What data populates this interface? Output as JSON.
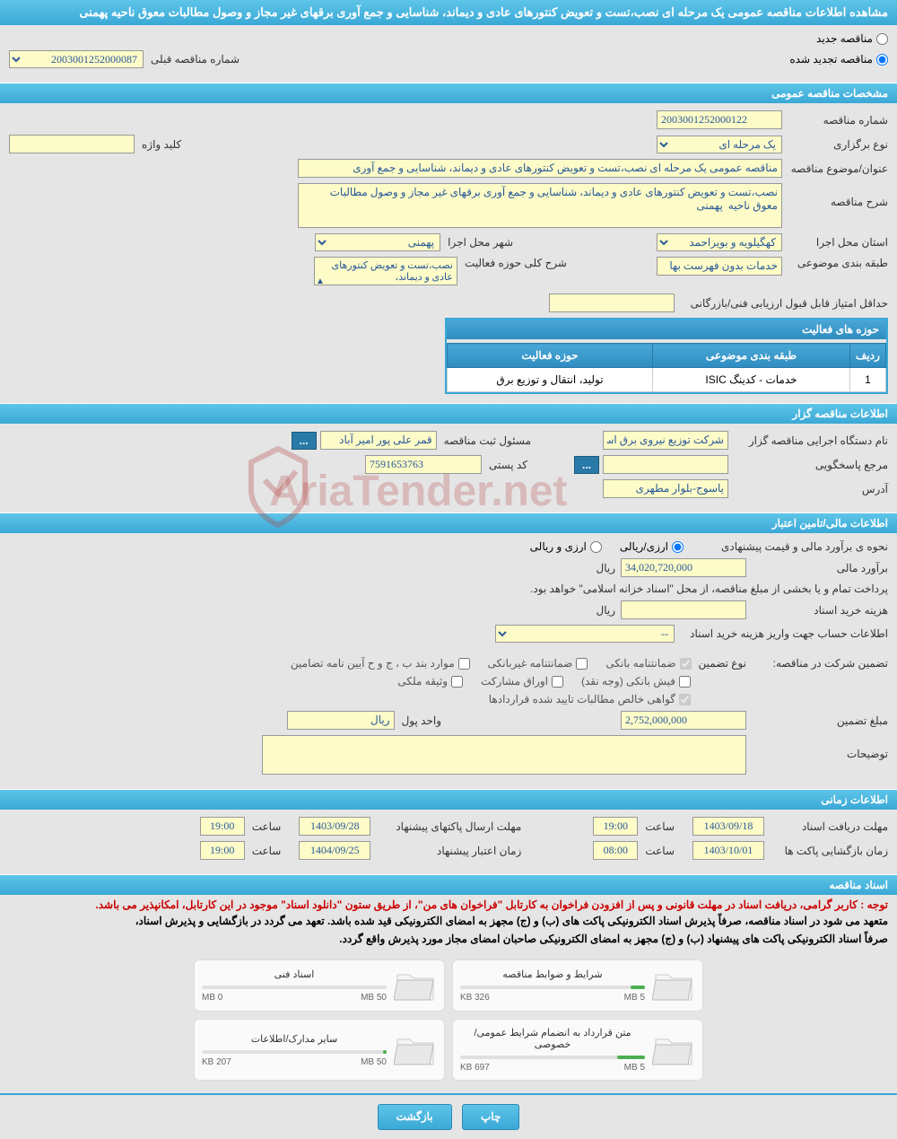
{
  "page_title": "مشاهده اطلاعات مناقصه عمومی یک مرحله ای نصب،تست و تعویض کنتورهای عادی و دیماند، شناسایی و جمع آوری برقهای غیر مجاز و وصول مطالبات معوق ناحیه پهمنی",
  "tender_type": {
    "new_label": "مناقصه جدید",
    "renewed_label": "مناقصه تجدید شده",
    "prev_number_label": "شماره مناقصه قبلی",
    "prev_number": "2003001252000087"
  },
  "sections": {
    "general": "مشخصات مناقصه عمومی",
    "organizer": "اطلاعات مناقصه گزار",
    "financial": "اطلاعات مالی/تامین اعتبار",
    "timing": "اطلاعات زمانی",
    "documents": "اسناد مناقصه"
  },
  "general": {
    "tender_number_label": "شماره مناقصه",
    "tender_number": "2003001252000122",
    "holding_type_label": "نوع برگزاری",
    "holding_type": "یک مرحله ای",
    "keyword_label": "کلید واژه",
    "keyword": "",
    "title_label": "عنوان/موضوع مناقصه",
    "title": "مناقصه عمومی یک مرحله ای نصب،تست و تعویض کنتورهای عادی و دیماند، شناسایی و جمع آوری",
    "desc_label": "شرح مناقصه",
    "desc": "نصب،تست و تعویض کنتورهای عادی و دیماند، شناسایی و جمع آوری برقهای غیر مجاز و وصول مطالبات معوق ناحیه  پهمنی",
    "province_label": "استان محل اجرا",
    "province": "کهگیلویه و بویراحمد",
    "city_label": "شهر محل اجرا",
    "city": "پهمنی",
    "category_label": "طبقه بندی موضوعی",
    "category": "خدمات بدون فهرست بها",
    "activity_desc_label": "شرح کلی حوزه فعالیت",
    "activity_desc": "نصب،تست و تعویض کنتورهای عادی و دیماند،",
    "min_score_label": "حداقل امتیاز قابل قبول ارزیابی فنی/بازرگانی",
    "min_score": "",
    "activities_header": "حوزه های فعالیت",
    "table": {
      "col_row": "ردیف",
      "col_category": "طبقه بندی موضوعی",
      "col_activity": "حوزه فعالیت",
      "rows": [
        {
          "idx": "1",
          "cat": "خدمات - کدینگ ISIC",
          "act": "تولید، انتقال و توزیع برق"
        }
      ]
    }
  },
  "organizer": {
    "exec_label": "نام دستگاه اجرایی مناقصه گزار",
    "exec_name": "شرکت توزیع نیروی برق اس",
    "reg_officer_label": "مسئول ثبت مناقصه",
    "reg_officer": "قمر علی پور امیر آباد",
    "contact_label": "مرجع پاسخگویی",
    "contact": "",
    "postal_label": "کد پستی",
    "postal": "7591653763",
    "address_label": "آدرس",
    "address": "یاسوج-بلوار مطهری"
  },
  "financial": {
    "estimate_method_label": "نحوه ی برآورد مالی و قیمت پیشنهادی",
    "method_opt1": "ارزی/ریالی",
    "method_opt2": "ارزی و ریالی",
    "estimate_label": "برآورد مالی",
    "estimate_value": "34,020,720,000",
    "currency": "ریال",
    "treasury_note": "پرداخت تمام و یا بخشی از مبلغ مناقصه، از محل \"اسناد خزانه اسلامی\" خواهد بود.",
    "doc_fee_label": "هزینه خرید اسناد",
    "doc_fee": "",
    "account_label": "اطلاعات حساب جهت واریز هزینه خرید اسناد",
    "account": "--",
    "guarantee_label": "تضمین شرکت در مناقصه:",
    "guarantee_type_label": "نوع تضمین",
    "chk_bank": "ضمانتنامه بانکی",
    "chk_nonbank": "ضمانتنامه غیربانکی",
    "chk_bylaw": "موارد بند ب ، ج و ح آیین نامه تضامین",
    "chk_cash": "فیش بانکی (وجه نقد)",
    "chk_bonds": "اوراق مشارکت",
    "chk_property": "وثیقه ملکی",
    "chk_receivables": "گواهی خالص مطالبات تایید شده قراردادها",
    "guarantee_amount_label": "مبلغ تضمین",
    "guarantee_amount": "2,752,000,000",
    "currency_unit_label": "واحد پول",
    "currency_unit": "ریال",
    "remarks_label": "توضیحات",
    "remarks": ""
  },
  "timing": {
    "doc_receipt_label": "مهلت دریافت اسناد",
    "doc_receipt_date": "1403/09/18",
    "doc_receipt_time": "19:00",
    "envelope_send_label": "مهلت ارسال پاکتهای پیشنهاد",
    "envelope_send_date": "1403/09/28",
    "envelope_send_time": "19:00",
    "envelope_open_label": "زمان بازگشایی پاکت ها",
    "envelope_open_date": "1403/10/01",
    "envelope_open_time": "08:00",
    "validity_label": "زمان اعتبار پیشنهاد",
    "validity_date": "1404/09/25",
    "validity_time": "19:00",
    "time_label": "ساعت"
  },
  "documents": {
    "red_note": "توجه : کاربر گرامی، دریافت اسناد در مهلت قانونی و پس از افزودن فراخوان به کارتابل \"فراخوان های من\"، از طریق ستون \"دانلود اسناد\" موجود در این کارتابل، امکانپذیر می باشد.",
    "black_note1": "متعهد می شود در اسناد مناقصه، صرفاً پذیرش اسناد الکترونیکی پاکت های (ب) و (ج) مجهز به امضای الکترونیکی قید شده باشد. تعهد می گردد در بازگشایی و پذیرش اسناد،",
    "black_note2": "صرفاً اسناد الکترونیکی پاکت های پیشنهاد (ب) و (ج) مجهز به امضای الکترونیکی صاحبان امضای مجاز مورد پذیرش واقع گردد.",
    "tiles": [
      {
        "title": "شرایط و ضوابط مناقصه",
        "used": "326 KB",
        "limit": "5 MB",
        "pct": 8
      },
      {
        "title": "اسناد فنی",
        "used": "0 MB",
        "limit": "50 MB",
        "pct": 0
      },
      {
        "title": "متن قرارداد به انضمام شرایط عمومی/خصوصی",
        "used": "697 KB",
        "limit": "5 MB",
        "pct": 15
      },
      {
        "title": "سایر مدارک/اطلاعات",
        "used": "207 KB",
        "limit": "50 MB",
        "pct": 2
      }
    ]
  },
  "buttons": {
    "print": "چاپ",
    "back": "بازگشت"
  },
  "watermark": "AriaTender.net",
  "colors": {
    "header_bg": "#3aa8d6",
    "input_bg": "#fdfbc7",
    "input_text": "#2a5a9a"
  }
}
